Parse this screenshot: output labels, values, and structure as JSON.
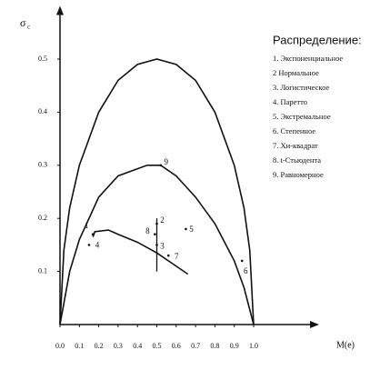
{
  "chart_data": {
    "type": "line",
    "y_label": "σ",
    "y_label_sub": "c",
    "x_label": "M(e)",
    "xlim": [
      0,
      1.31
    ],
    "ylim": [
      0,
      0.59
    ],
    "xticks": [
      {
        "value": 0,
        "label": "0.0"
      },
      0.1,
      0.2,
      0.3,
      0.4,
      0.5,
      0.6,
      0.7,
      0.8,
      0.9,
      {
        "value": 1,
        "label": "1.0"
      }
    ],
    "yticks": [
      0.1,
      0.2,
      0.3,
      0.4,
      0.5
    ],
    "series": [
      {
        "color": "#111",
        "x": [
          0,
          0.02,
          0.05,
          0.1,
          0.2,
          0.3,
          0.4,
          0.5,
          0.6,
          0.7,
          0.8,
          0.9,
          0.95,
          0.98,
          1.0
        ],
        "values": [
          0,
          0.14,
          0.22,
          0.3,
          0.4,
          0.46,
          0.49,
          0.5,
          0.49,
          0.46,
          0.4,
          0.3,
          0.22,
          0.14,
          0
        ]
      },
      {
        "color": "#111",
        "x": [
          0,
          0.05,
          0.1,
          0.2,
          0.3,
          0.45,
          0.52,
          0.6,
          0.7,
          0.8,
          0.9,
          0.95,
          1.0
        ],
        "values": [
          0,
          0.1,
          0.16,
          0.24,
          0.28,
          0.3,
          0.3,
          0.28,
          0.24,
          0.19,
          0.12,
          0.07,
          0
        ]
      },
      {
        "color": "#111",
        "x": [
          0.17,
          0.18,
          0.25,
          0.3,
          0.4,
          0.5,
          0.6,
          0.66
        ],
        "values": [
          0.165,
          0.175,
          0.178,
          0.17,
          0.155,
          0.135,
          0.11,
          0.095
        ]
      }
    ],
    "marker_line": {
      "x": 0.5,
      "y": [
        0.1,
        0.2
      ]
    },
    "points": {
      "labels": [
        "1",
        "2",
        "3",
        "4",
        "5",
        "6",
        "7",
        "8",
        "9"
      ],
      "x": [
        0.17,
        0.5,
        0.5,
        0.15,
        0.65,
        0.94,
        0.56,
        0.49,
        0.52
      ],
      "values": [
        0.17,
        0.19,
        0.15,
        0.15,
        0.18,
        0.12,
        0.13,
        0.17,
        0.3
      ]
    },
    "legend_title": "Распределение:",
    "legend_items": [
      "1. Экспоненциальное",
      "2 Нормальное",
      "3. Логистическое",
      "4. Паретто",
      "5. Экстремальное",
      "6. Степенное",
      "7. Хи-квадрат",
      "8. t-Стьюдента",
      "9. Равномерное"
    ]
  }
}
